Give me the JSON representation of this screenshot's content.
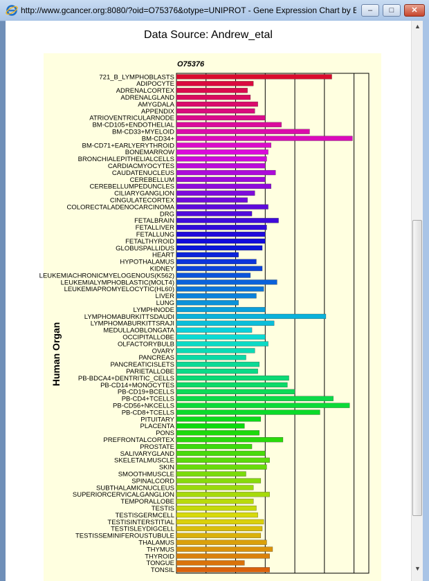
{
  "window": {
    "title": "http://www.gcancer.org:8080/?oid=O75376&otype=UNIPROT - Gene Expression Chart by E...",
    "minimize_glyph": "‒",
    "maximize_glyph": "□",
    "close_glyph": "✕",
    "scroll_up_glyph": "▲",
    "scroll_down_glyph": "▼"
  },
  "colors": {
    "plot_bg": "#ffffe0"
  },
  "chart_data": {
    "type": "bar",
    "orientation": "horizontal",
    "title": "Data Source: Andrew_etal",
    "subtitle": "O75376",
    "ylabel": "Human Organ",
    "xlabel": "",
    "grid": true,
    "categories": [
      "721_B_LYMPHOBLASTS",
      "ADIPOCYTE",
      "ADRENALCORTEX",
      "ADRENALGLAND",
      "AMYGDALA",
      "APPENDIX",
      "ATRIOVENTRICULARNODE",
      "BM-CD105+ENDOTHELIAL",
      "BM-CD33+MYELOID",
      "BM-CD34+",
      "BM-CD71+EARLYERYTHROID",
      "BONEMARROW",
      "BRONCHIALEPITHELIALCELLS",
      "CARDIACMYOCYTES",
      "CAUDATENUCLEUS",
      "CEREBELLUM",
      "CEREBELLUMPEDUNCLES",
      "CILIARYGANGLION",
      "CINGULATECORTEX",
      "COLORECTALADENOCARCINOMA",
      "DRG",
      "FETALBRAIN",
      "FETALLIVER",
      "FETALLUNG",
      "FETALTHYROID",
      "GLOBUSPALLIDUS",
      "HEART",
      "HYPOTHALAMUS",
      "KIDNEY",
      "LEUKEMIACHRONICMYELOGENOUS(K562)",
      "LEUKEMIALYMPHOBLASTIC(MOLT4)",
      "LEUKEMIAPROMYELOCYTIC(HL60)",
      "LIVER",
      "LUNG",
      "LYMPHNODE",
      "LYMPHOMABURKITTSDAUDI",
      "LYMPHOMABURKITTSRAJI",
      "MEDULLAOBLONGATA",
      "OCCIPITALLOBE",
      "OLFACTORYBULB",
      "OVARY",
      "PANCREAS",
      "PANCREATICISLETS",
      "PARIETALLOBE",
      "PB-BDCA4+DENTRITIC_CELLS",
      "PB-CD14+MONOCYTES",
      "PB-CD19+BCELLS",
      "PB-CD4+TCELLS",
      "PB-CD56+NKCELLS",
      "PB-CD8+TCELLS",
      "PITUITARY",
      "PLACENTA",
      "PONS",
      "PREFRONTALCORTEX",
      "PROSTATE",
      "SALIVARYGLAND",
      "SKELETALMUSCLE",
      "SKIN",
      "SMOOTHMUSCLE",
      "SPINALCORD",
      "SUBTHALAMICNUCLEUS",
      "SUPERIORCERVICALGANGLION",
      "TEMPORALLOBE",
      "TESTIS",
      "TESTISGERMCELL",
      "TESTISINTERSTITIAL",
      "TESTISLEYDIGCELL",
      "TESTISSEMINIFEROUSTUBULE",
      "THALAMUS",
      "THYMUS",
      "THYROID",
      "TONGUE",
      "TONSIL"
    ],
    "values": [
      5.25,
      2.6,
      2.4,
      2.5,
      2.75,
      2.65,
      3.0,
      3.55,
      4.5,
      5.95,
      3.2,
      3.1,
      3.05,
      3.0,
      3.35,
      3.0,
      3.2,
      2.65,
      2.4,
      3.1,
      2.55,
      3.45,
      3.05,
      3.0,
      3.0,
      2.9,
      2.1,
      2.7,
      2.9,
      2.5,
      3.4,
      2.95,
      2.7,
      2.1,
      3.0,
      5.05,
      3.3,
      2.55,
      3.0,
      3.1,
      2.65,
      2.35,
      2.8,
      2.75,
      3.8,
      3.75,
      4.0,
      5.3,
      5.85,
      4.85,
      2.85,
      2.3,
      2.8,
      3.6,
      2.55,
      3.0,
      3.15,
      3.05,
      2.35,
      2.85,
      2.6,
      3.15,
      2.6,
      2.7,
      2.75,
      2.95,
      2.9,
      2.85,
      3.05,
      3.25,
      3.15,
      2.3,
      3.15
    ],
    "xlim": [
      0,
      6.5
    ],
    "x_grid_step": 1
  }
}
